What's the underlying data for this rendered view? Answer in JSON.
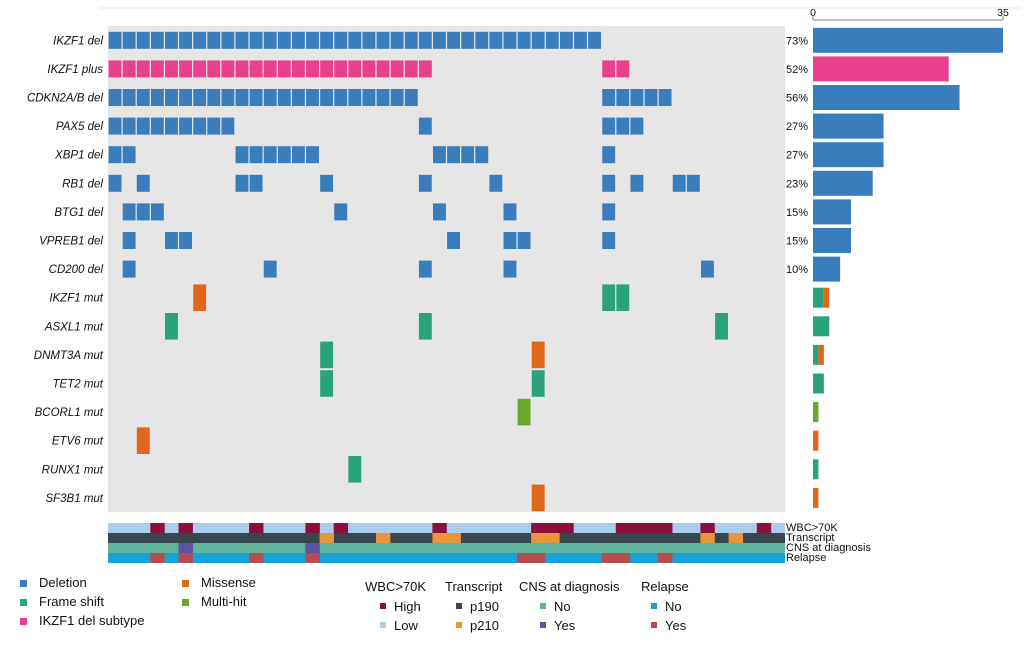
{
  "chart_data": {
    "type": "heatmap",
    "samples": 48,
    "genes": [
      {
        "name": "IKZF1 del",
        "pct": "73%",
        "count": 35,
        "alts": [
          {
            "type": "del",
            "cols": [
              0,
              1,
              2,
              3,
              4,
              5,
              6,
              7,
              8,
              9,
              10,
              11,
              12,
              13,
              14,
              15,
              16,
              17,
              18,
              19,
              20,
              21,
              22,
              23,
              24,
              25,
              26,
              27,
              28,
              29,
              30,
              31,
              32,
              33,
              34
            ]
          }
        ]
      },
      {
        "name": "IKZF1 plus",
        "pct": "52%",
        "count": 25,
        "alts": [
          {
            "type": "sub",
            "cols": [
              0,
              1,
              2,
              3,
              4,
              5,
              6,
              7,
              8,
              9,
              10,
              11,
              12,
              13,
              14,
              15,
              16,
              17,
              18,
              19,
              20,
              21,
              22,
              35,
              36
            ]
          }
        ]
      },
      {
        "name": "CDKN2A/B del",
        "pct": "56%",
        "count": 27,
        "alts": [
          {
            "type": "del",
            "cols": [
              0,
              1,
              2,
              3,
              4,
              5,
              6,
              7,
              8,
              9,
              10,
              11,
              12,
              13,
              14,
              15,
              16,
              17,
              18,
              19,
              20,
              21,
              35,
              36,
              37,
              38,
              39
            ]
          }
        ]
      },
      {
        "name": "PAX5 del",
        "pct": "27%",
        "count": 13,
        "alts": [
          {
            "type": "del",
            "cols": [
              0,
              1,
              2,
              3,
              4,
              5,
              6,
              7,
              8,
              22,
              35,
              36,
              37
            ]
          }
        ]
      },
      {
        "name": "XBP1 del",
        "pct": "27%",
        "count": 13,
        "alts": [
          {
            "type": "del",
            "cols": [
              0,
              1,
              9,
              10,
              11,
              12,
              13,
              14,
              23,
              24,
              25,
              26,
              35
            ]
          }
        ]
      },
      {
        "name": "RB1 del",
        "pct": "23%",
        "count": 11,
        "alts": [
          {
            "type": "del",
            "cols": [
              0,
              2,
              9,
              10,
              15,
              22,
              27,
              35,
              37,
              40,
              41
            ]
          }
        ]
      },
      {
        "name": "BTG1 del",
        "pct": "15%",
        "count": 7,
        "alts": [
          {
            "type": "del",
            "cols": [
              1,
              2,
              3,
              16,
              23,
              28,
              35
            ]
          }
        ]
      },
      {
        "name": "VPREB1 del",
        "pct": "15%",
        "count": 7,
        "alts": [
          {
            "type": "del",
            "cols": [
              1,
              4,
              5,
              24,
              28,
              29,
              35
            ]
          }
        ]
      },
      {
        "name": "CD200 del",
        "pct": "10%",
        "count": 5,
        "alts": [
          {
            "type": "del",
            "cols": [
              1,
              11,
              22,
              28,
              42
            ]
          }
        ]
      },
      {
        "name": "IKZF1 mut",
        "pct": "",
        "alts": [
          {
            "type": "fs",
            "cols": [
              35,
              36
            ]
          },
          {
            "type": "mis",
            "cols": [
              6
            ]
          }
        ]
      },
      {
        "name": "ASXL1 mut",
        "pct": "",
        "alts": [
          {
            "type": "fs",
            "cols": [
              4,
              22,
              43
            ]
          }
        ]
      },
      {
        "name": "DNMT3A mut",
        "pct": "",
        "alts": [
          {
            "type": "fs",
            "cols": [
              15
            ]
          },
          {
            "type": "mis",
            "cols": [
              30
            ]
          }
        ]
      },
      {
        "name": "TET2 mut",
        "pct": "",
        "alts": [
          {
            "type": "fs",
            "cols": [
              15,
              30
            ]
          }
        ]
      },
      {
        "name": "BCORL1 mut",
        "pct": "",
        "alts": [
          {
            "type": "multi",
            "cols": [
              29
            ]
          }
        ]
      },
      {
        "name": "ETV6 mut",
        "pct": "",
        "alts": [
          {
            "type": "mis",
            "cols": [
              2
            ]
          }
        ]
      },
      {
        "name": "RUNX1 mut",
        "pct": "",
        "alts": [
          {
            "type": "fs",
            "cols": [
              17
            ]
          }
        ]
      },
      {
        "name": "SF3B1 mut",
        "pct": "",
        "alts": [
          {
            "type": "mis",
            "cols": [
              30
            ]
          }
        ]
      }
    ],
    "bars": {
      "axis_min": 0,
      "axis_max": 35,
      "tick_labels": [
        "0",
        "35"
      ],
      "values": [
        {
          "del": 35
        },
        {
          "sub": 25
        },
        {
          "del": 27
        },
        {
          "del": 13
        },
        {
          "del": 13
        },
        {
          "del": 11
        },
        {
          "del": 7
        },
        {
          "del": 7
        },
        {
          "del": 5
        },
        {
          "fs": 2,
          "mis": 1
        },
        {
          "fs": 3
        },
        {
          "fs": 1,
          "mis": 1
        },
        {
          "fs": 2
        },
        {
          "multi": 1
        },
        {
          "mis": 1
        },
        {
          "fs": 1
        },
        {
          "mis": 1
        }
      ]
    },
    "clinical_tracks": [
      {
        "name": "WBC>70K",
        "base": "low",
        "segments": [
          {
            "value": "high",
            "cols": [
              3,
              5,
              10,
              14,
              16,
              23,
              30,
              31,
              32,
              36,
              37,
              38,
              39,
              42,
              46
            ]
          }
        ]
      },
      {
        "name": "Transcript",
        "base": "p190",
        "segments": [
          {
            "value": "p210",
            "cols": [
              15,
              19,
              23,
              24,
              30,
              31,
              42,
              44
            ]
          }
        ]
      },
      {
        "name": "CNS at diagnosis",
        "base": "no",
        "segments": [
          {
            "value": "yes",
            "cols": [
              5,
              14
            ]
          }
        ]
      },
      {
        "name": "Relapse",
        "base": "no",
        "segments": [
          {
            "value": "yes",
            "cols": [
              3,
              5,
              10,
              14,
              29,
              30,
              35,
              36,
              39
            ]
          }
        ]
      }
    ]
  },
  "colors": {
    "cell_bg": "#e6e6e6",
    "del": "#3a7dbd",
    "sub": "#e83f8f",
    "fs": "#2ba37a",
    "mis": "#e0661a",
    "multi": "#6aa82c",
    "wbc_high": "#8b0f3a",
    "wbc_low": "#a9cdef",
    "transcript_p190": "#37474f",
    "transcript_p210": "#e8953c",
    "cns_no": "#5fb39a",
    "cns_yes": "#5b53a0",
    "relapse_no": "#16a3d9",
    "relapse_yes": "#b74d4f"
  },
  "legend": {
    "alterations": [
      {
        "label": "Deletion",
        "type": "del"
      },
      {
        "label": "Frame shift",
        "type": "fs"
      },
      {
        "label": "IKZF1 del subtype",
        "type": "sub"
      },
      {
        "label": "Missense",
        "type": "mis"
      },
      {
        "label": "Multi-hit",
        "type": "multi"
      }
    ],
    "clinical": [
      {
        "title": "WBC>70K",
        "items": [
          {
            "label": "High",
            "color_key": "wbc_high"
          },
          {
            "label": "Low",
            "color_key": "wbc_low"
          }
        ]
      },
      {
        "title": "Transcript",
        "items": [
          {
            "label": "p190",
            "color_key": "transcript_p190"
          },
          {
            "label": "p210",
            "color_key": "transcript_p210"
          }
        ]
      },
      {
        "title": "CNS at diagnosis",
        "items": [
          {
            "label": "No",
            "color_key": "cns_no"
          },
          {
            "label": "Yes",
            "color_key": "cns_yes"
          }
        ]
      },
      {
        "title": "Relapse",
        "items": [
          {
            "label": "No",
            "color_key": "relapse_no"
          },
          {
            "label": "Yes",
            "color_key": "relapse_yes"
          }
        ]
      }
    ]
  }
}
